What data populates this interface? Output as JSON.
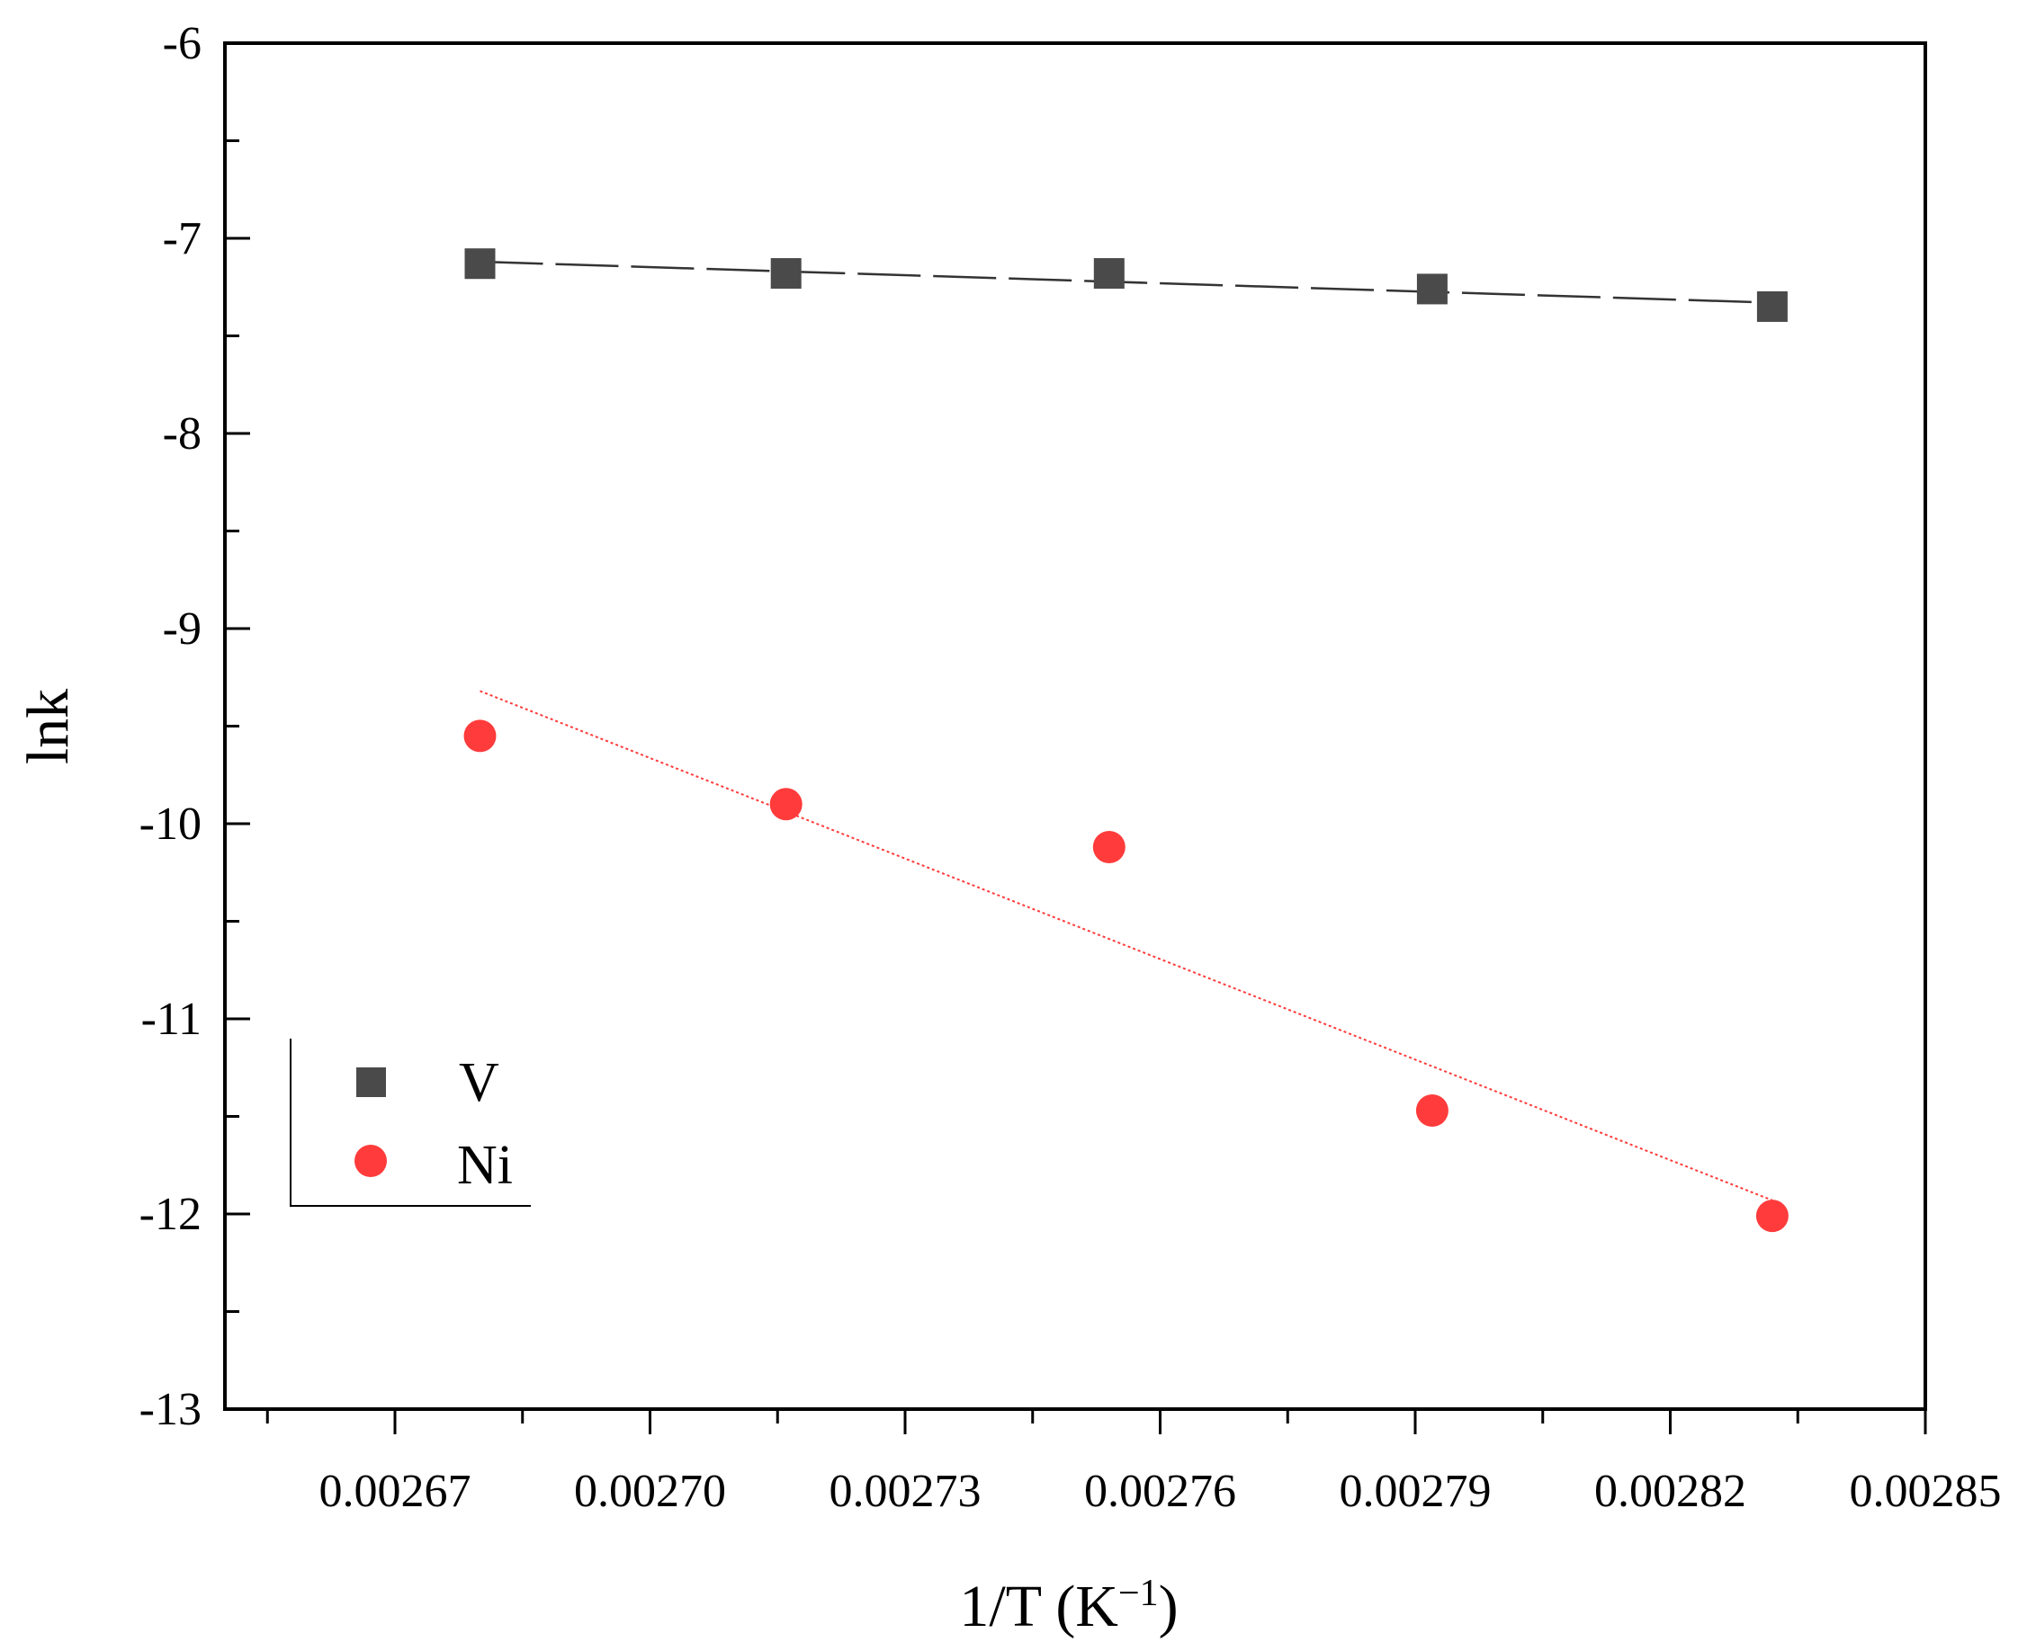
{
  "chart_data": {
    "type": "scatter",
    "title": "",
    "xlabel": "1/T (K",
    "xlabel_sup": "−1",
    "xlabel_close": ")",
    "ylabel": "lnk",
    "xlim": [
      0.00265,
      0.00285
    ],
    "ylim": [
      -13,
      -6
    ],
    "xticks": [
      0.00267,
      0.0027,
      0.00273,
      0.00276,
      0.00279,
      0.00282,
      0.00285
    ],
    "xtick_labels": [
      "0.00267",
      "0.00270",
      "0.00273",
      "0.00276",
      "0.00279",
      "0.00282",
      "0.00285"
    ],
    "yticks": [
      -13,
      -12,
      -11,
      -10,
      -9,
      -8,
      -7,
      -6
    ],
    "ytick_labels": [
      "-13",
      "-12",
      "-11",
      "-10",
      "-9",
      "-8",
      "-7",
      "-6"
    ],
    "grid": false,
    "legend_position": "bottom-left",
    "series": [
      {
        "name": "V",
        "marker": "square",
        "color": "#4a4a4a",
        "x": [
          0.00268,
          0.002716,
          0.002754,
          0.002792,
          0.002832
        ],
        "y": [
          -7.13,
          -7.18,
          -7.18,
          -7.26,
          -7.35
        ],
        "fit": {
          "style": "dashed",
          "color": "#333333",
          "x": [
            0.00268,
            0.002832
          ],
          "y": [
            -7.12,
            -7.33
          ]
        }
      },
      {
        "name": "Ni",
        "marker": "circle",
        "color": "#ff3b3b",
        "x": [
          0.00268,
          0.002716,
          0.002754,
          0.002792,
          0.002832
        ],
        "y": [
          -9.55,
          -9.9,
          -10.12,
          -11.47,
          -12.01
        ],
        "fit": {
          "style": "dotted",
          "color": "#ff3b3b",
          "x": [
            0.00268,
            0.002832
          ],
          "y": [
            -9.32,
            -11.93
          ]
        }
      }
    ]
  }
}
